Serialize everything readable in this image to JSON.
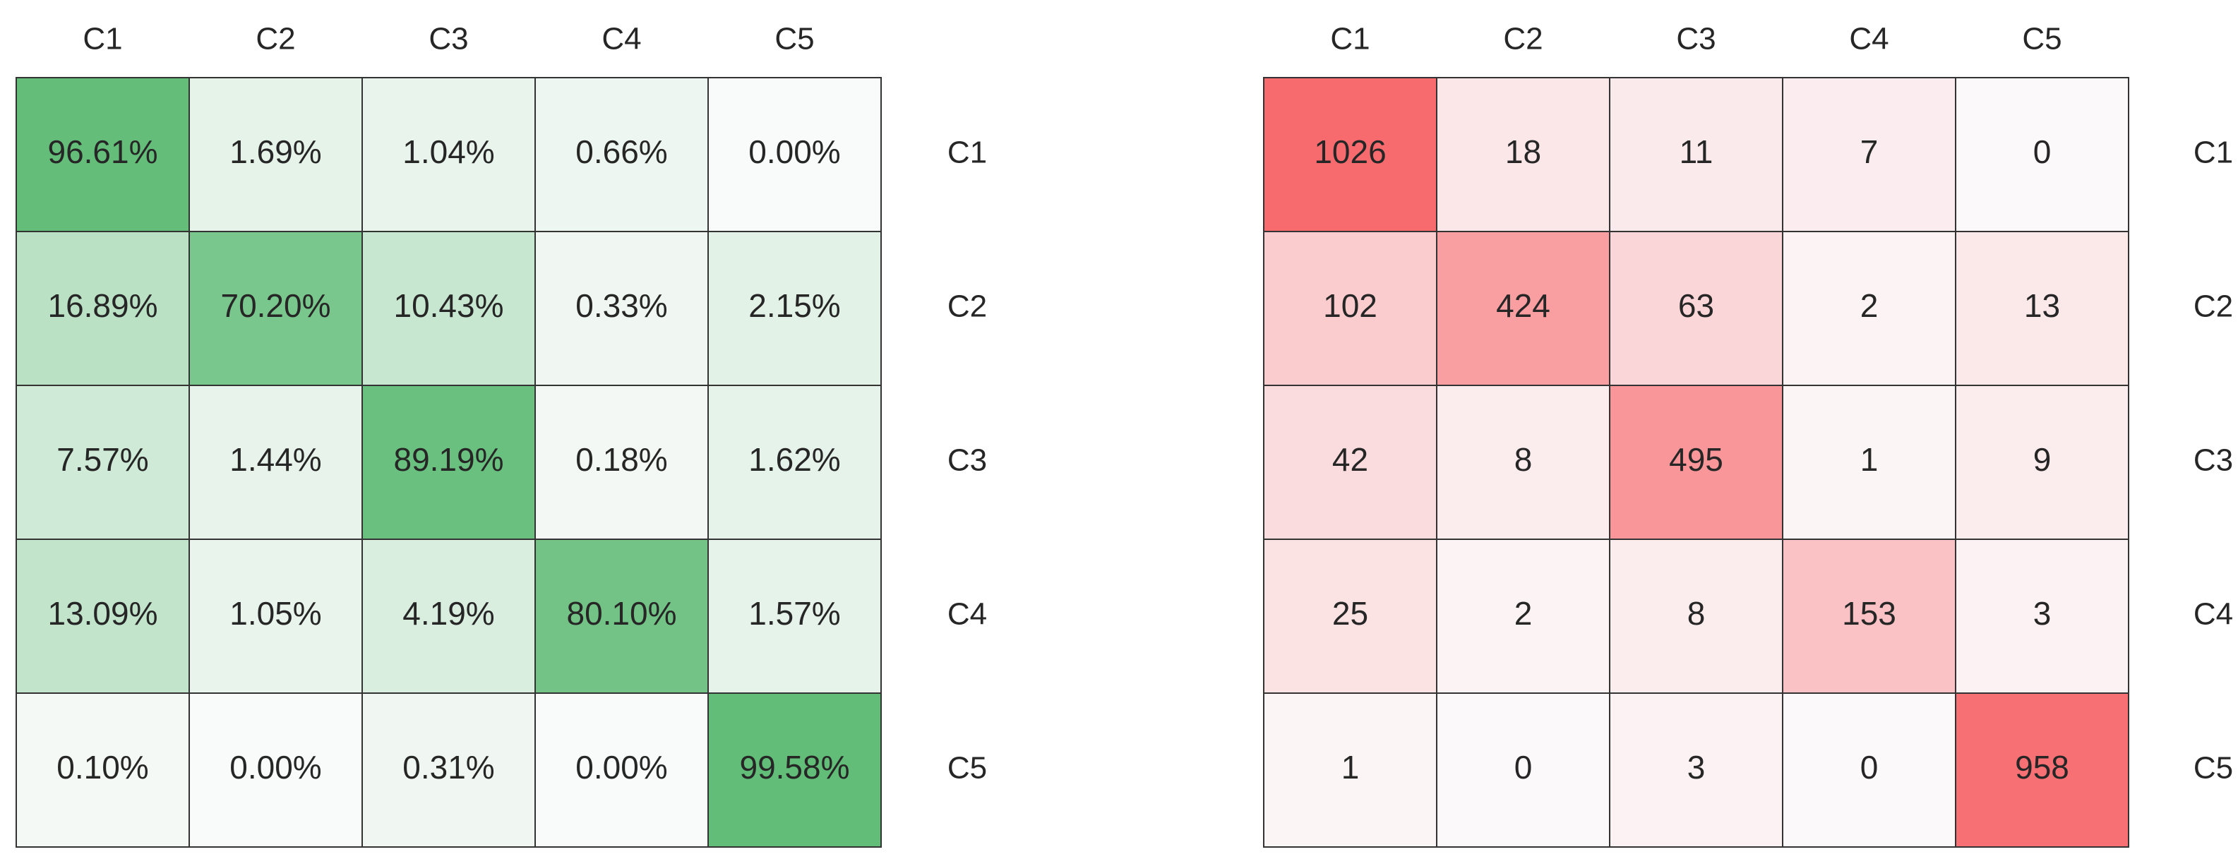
{
  "chart_data": [
    {
      "type": "heatmap",
      "title": "",
      "column_labels": [
        "C1",
        "C2",
        "C3",
        "C4",
        "C5"
      ],
      "row_labels": [
        "C1",
        "C2",
        "C3",
        "C4",
        "C5"
      ],
      "value_format": "percent",
      "color": "#62bd78",
      "values": [
        [
          "96.61%",
          "1.69%",
          "1.04%",
          "0.66%",
          "0.00%"
        ],
        [
          "16.89%",
          "70.20%",
          "10.43%",
          "0.33%",
          "2.15%"
        ],
        [
          "7.57%",
          "1.44%",
          "89.19%",
          "0.18%",
          "1.62%"
        ],
        [
          "13.09%",
          "1.05%",
          "4.19%",
          "80.10%",
          "1.57%"
        ],
        [
          "0.10%",
          "0.00%",
          "0.31%",
          "0.00%",
          "99.58%"
        ]
      ]
    },
    {
      "type": "heatmap",
      "title": "",
      "column_labels": [
        "C1",
        "C2",
        "C3",
        "C4",
        "C5"
      ],
      "row_labels": [
        "C1",
        "C2",
        "C3",
        "C4",
        "C5"
      ],
      "value_format": "count",
      "color": "#f76b6f",
      "values": [
        [
          "1026",
          "18",
          "11",
          "7",
          "0"
        ],
        [
          "102",
          "424",
          "63",
          "2",
          "13"
        ],
        [
          "42",
          "8",
          "495",
          "1",
          "9"
        ],
        [
          "25",
          "2",
          "8",
          "153",
          "3"
        ],
        [
          "1",
          "0",
          "3",
          "0",
          "958"
        ]
      ]
    }
  ]
}
